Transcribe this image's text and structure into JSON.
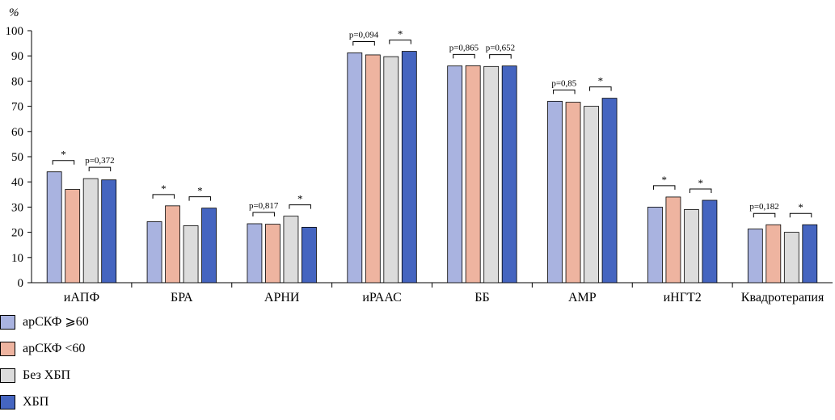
{
  "chart_data": {
    "type": "bar",
    "unit_label": "%",
    "ylim": [
      0,
      100
    ],
    "yticks": [
      0,
      10,
      20,
      30,
      40,
      50,
      60,
      70,
      80,
      90,
      100
    ],
    "categories": [
      "иАПФ",
      "БРА",
      "АРНИ",
      "иРААС",
      "ББ",
      "АМР",
      "иНГТ2",
      "Квадротерапия"
    ],
    "series": [
      {
        "name": "арСКФ ⩾60",
        "color": "#a9b3e0",
        "values": [
          44,
          24.2,
          23.4,
          91.2,
          86,
          72,
          30,
          21.3
        ]
      },
      {
        "name": "арСКФ <60",
        "color": "#eeb4a0",
        "values": [
          37,
          30.5,
          23.2,
          90.4,
          86.1,
          71.6,
          34,
          23
        ]
      },
      {
        "name": "Без ХБП",
        "color": "#dcdcdc",
        "values": [
          41.3,
          22.6,
          26.4,
          89.7,
          85.8,
          70,
          29,
          20
        ]
      },
      {
        "name": "ХБП",
        "color": "#4565c0",
        "values": [
          40.8,
          29.6,
          22,
          91.8,
          86,
          73.2,
          32.7,
          23
        ]
      }
    ],
    "annotations": [
      [
        "*",
        "p=0,372"
      ],
      [
        "*",
        "*"
      ],
      [
        "p=0,817",
        "*"
      ],
      [
        "p=0,094",
        "*"
      ],
      [
        "p=0,865",
        "p=0,652"
      ],
      [
        "p=0,85",
        "*"
      ],
      [
        "*",
        "*"
      ],
      [
        "p=0,182",
        "*"
      ]
    ]
  }
}
